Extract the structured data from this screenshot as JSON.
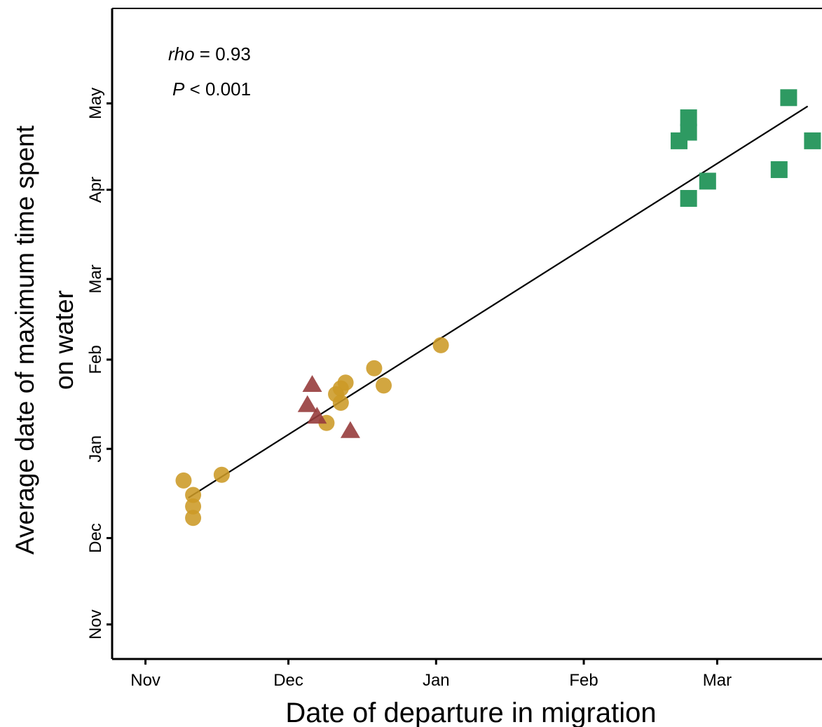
{
  "chart_data": {
    "type": "scatter",
    "xlabel": "Date of departure in migration",
    "ylabel_line1": "Average date of maximum time spent",
    "ylabel_line2": "on water",
    "x_ticks": [
      "Nov",
      "Dec",
      "Jan",
      "Feb",
      "Mar"
    ],
    "y_ticks": [
      "Nov",
      "Dec",
      "Jan",
      "Feb",
      "Mar",
      "Apr",
      "May"
    ],
    "xlim": [
      "2000-10-25",
      "2001-03-23"
    ],
    "ylim": [
      "2000-10-20",
      "2001-06-03"
    ],
    "grid": false,
    "annotation": {
      "rho_label": "rho",
      "rho_value": " = 0.93",
      "p_label": "P",
      "p_value": " < 0.001"
    },
    "series": [
      {
        "marker": "circle",
        "color": "#cc9a25",
        "points": [
          {
            "x": "2000-11-09",
            "y": "2000-12-21"
          },
          {
            "x": "2000-11-11",
            "y": "2000-12-16"
          },
          {
            "x": "2000-11-11",
            "y": "2000-12-12"
          },
          {
            "x": "2000-11-11",
            "y": "2000-12-08"
          },
          {
            "x": "2000-11-17",
            "y": "2000-12-23"
          },
          {
            "x": "2000-12-09",
            "y": "2001-01-10"
          },
          {
            "x": "2000-12-11",
            "y": "2001-01-20"
          },
          {
            "x": "2000-12-12",
            "y": "2001-01-22"
          },
          {
            "x": "2000-12-12",
            "y": "2001-01-17"
          },
          {
            "x": "2000-12-13",
            "y": "2001-01-24"
          },
          {
            "x": "2000-12-19",
            "y": "2001-01-29"
          },
          {
            "x": "2000-12-21",
            "y": "2001-01-23"
          },
          {
            "x": "2001-01-02",
            "y": "2001-02-06"
          }
        ]
      },
      {
        "marker": "triangle",
        "color": "#973c3c",
        "points": [
          {
            "x": "2000-12-06",
            "y": "2001-01-23"
          },
          {
            "x": "2000-12-05",
            "y": "2001-01-16"
          },
          {
            "x": "2000-12-07",
            "y": "2001-01-12"
          },
          {
            "x": "2000-12-14",
            "y": "2001-01-07"
          }
        ]
      },
      {
        "marker": "square",
        "color": "#2e9a62",
        "points": [
          {
            "x": "2001-02-23",
            "y": "2001-04-26"
          },
          {
            "x": "2001-02-23",
            "y": "2001-04-21"
          },
          {
            "x": "2001-02-21",
            "y": "2001-04-18"
          },
          {
            "x": "2001-02-27",
            "y": "2001-04-04"
          },
          {
            "x": "2001-02-23",
            "y": "2001-03-29"
          },
          {
            "x": "2001-03-16",
            "y": "2001-05-03"
          },
          {
            "x": "2001-03-21",
            "y": "2001-04-18"
          },
          {
            "x": "2001-03-14",
            "y": "2001-04-08"
          }
        ]
      }
    ],
    "trendline": {
      "x": [
        "2000-11-10",
        "2001-03-20"
      ],
      "y": [
        "2000-12-15",
        "2001-04-30"
      ],
      "color": "#000000"
    }
  }
}
